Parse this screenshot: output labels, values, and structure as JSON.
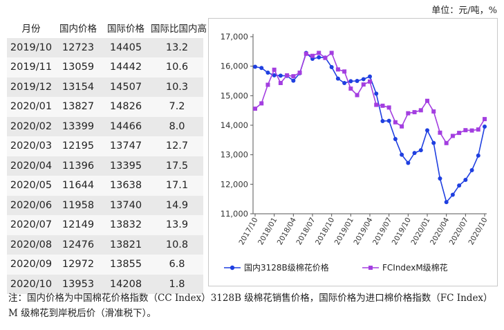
{
  "unit_label": "单位：元/吨，%",
  "table": {
    "headers": [
      "月份",
      "国内价格",
      "国际价格",
      "国际比国内高"
    ],
    "rows": [
      [
        "2019/10",
        "12723",
        "14405",
        "13.2"
      ],
      [
        "2019/11",
        "13059",
        "14442",
        "10.6"
      ],
      [
        "2019/12",
        "13154",
        "14507",
        "10.3"
      ],
      [
        "2020/01",
        "13827",
        "14826",
        "7.2"
      ],
      [
        "2020/02",
        "13399",
        "14466",
        "8.0"
      ],
      [
        "2020/03",
        "12195",
        "13747",
        "12.7"
      ],
      [
        "2020/04",
        "11396",
        "13395",
        "17.5"
      ],
      [
        "2020/05",
        "11644",
        "13638",
        "17.1"
      ],
      [
        "2020/06",
        "11958",
        "13740",
        "14.9"
      ],
      [
        "2020/07",
        "12149",
        "13832",
        "13.9"
      ],
      [
        "2020/08",
        "12476",
        "13821",
        "10.8"
      ],
      [
        "2020/09",
        "12972",
        "13855",
        "6.8"
      ],
      [
        "2020/10",
        "13953",
        "14208",
        "1.8"
      ]
    ]
  },
  "chart_data": {
    "type": "line",
    "title": "",
    "xlabel": "",
    "ylabel": "",
    "ylim": [
      11000,
      17000
    ],
    "yticks": [
      11000,
      12000,
      13000,
      14000,
      15000,
      16000,
      17000
    ],
    "ytick_labels": [
      "11,000",
      "12,000",
      "13,000",
      "14,000",
      "15,000",
      "16,000",
      "17,000"
    ],
    "x": [
      "2017/10",
      "2017/11",
      "2017/12",
      "2018/01",
      "2018/02",
      "2018/03",
      "2018/04",
      "2018/05",
      "2018/06",
      "2018/07",
      "2018/08",
      "2018/09",
      "2018/10",
      "2018/11",
      "2018/12",
      "2019/01",
      "2019/02",
      "2019/03",
      "2019/04",
      "2019/05",
      "2019/06",
      "2019/07",
      "2019/08",
      "2019/09",
      "2019/10",
      "2019/11",
      "2019/12",
      "2020/01",
      "2020/02",
      "2020/03",
      "2020/04",
      "2020/05",
      "2020/06",
      "2020/07",
      "2020/08",
      "2020/09",
      "2020/10"
    ],
    "xtick_labels": [
      "2017/10",
      "2018/01",
      "2018/04",
      "2018/07",
      "2018/10",
      "2019/01",
      "2019/04",
      "2019/07",
      "2019/10",
      "2020/01",
      "2020/04",
      "2020/07",
      "2020/10"
    ],
    "series": [
      {
        "name": "国内3128B级棉花价格",
        "color": "#1f3fe0",
        "marker": "circle",
        "values": [
          15980,
          15940,
          15780,
          15690,
          15680,
          15670,
          15510,
          15760,
          16450,
          16250,
          16300,
          16290,
          15970,
          15580,
          15430,
          15490,
          15500,
          15560,
          15650,
          15070,
          14140,
          14150,
          13530,
          13000,
          12723,
          13059,
          13154,
          13827,
          13399,
          12195,
          11396,
          11644,
          11958,
          12149,
          12476,
          12972,
          13953
        ]
      },
      {
        "name": "FCIndexM级棉花",
        "color": "#a33ee0",
        "marker": "square",
        "values": [
          14560,
          14740,
          15370,
          15880,
          15430,
          15690,
          15660,
          15780,
          16420,
          16350,
          16450,
          16280,
          16450,
          15890,
          15820,
          15240,
          15020,
          15380,
          15480,
          14690,
          14660,
          14600,
          14100,
          13960,
          14405,
          14442,
          14507,
          14826,
          14466,
          13747,
          13395,
          13638,
          13740,
          13832,
          13821,
          13855,
          14208
        ]
      }
    ],
    "legend_position": "bottom",
    "grid": false
  },
  "note": "注：国内价格为中国棉花价格指数（CC Index）3128B 级棉花销售价格，国际价格为进口棉价格指数（FC Index） M 级棉花到岸税后价（滑准税下）。"
}
